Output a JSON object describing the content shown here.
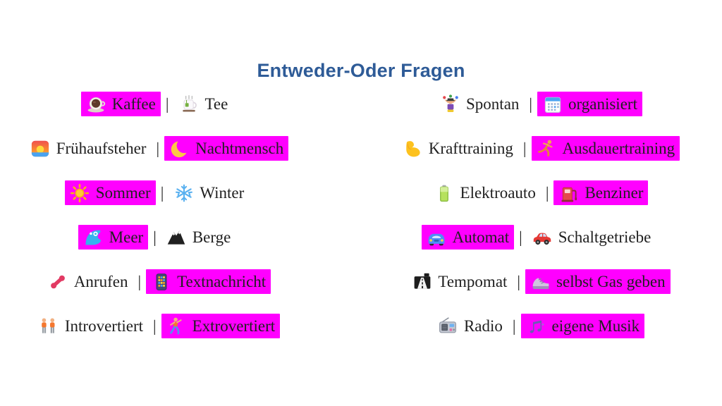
{
  "page": {
    "title": "Entweder-Oder Fragen",
    "title_color": "#2e5b97",
    "highlight_color": "#ff00ff",
    "text_color": "#1f1f1f"
  },
  "separator": "|",
  "columns": [
    {
      "rows": [
        {
          "options": [
            {
              "icon": "coffee-icon",
              "label": "Kaffee",
              "highlighted": true
            },
            {
              "icon": "tea-icon",
              "label": "Tee",
              "highlighted": false
            }
          ]
        },
        {
          "options": [
            {
              "icon": "sunrise-icon",
              "label": "Frühaufsteher",
              "highlighted": false
            },
            {
              "icon": "crescent-moon-icon",
              "label": "Nachtmensch",
              "highlighted": true
            }
          ]
        },
        {
          "options": [
            {
              "icon": "sun-icon",
              "label": "Sommer",
              "highlighted": true
            },
            {
              "icon": "snowflake-icon",
              "label": "Winter",
              "highlighted": false
            }
          ]
        },
        {
          "options": [
            {
              "icon": "wave-icon",
              "label": "Meer",
              "highlighted": true
            },
            {
              "icon": "mountain-icon",
              "label": "Berge",
              "highlighted": false
            }
          ]
        },
        {
          "options": [
            {
              "icon": "phone-receiver-icon",
              "label": "Anrufen",
              "highlighted": false
            },
            {
              "icon": "keypad-icon",
              "label": "Textnachricht",
              "highlighted": true
            }
          ]
        },
        {
          "options": [
            {
              "icon": "two-people-icon",
              "label": "Introvertiert",
              "highlighted": false
            },
            {
              "icon": "dancer-icon",
              "label": "Extrovertiert",
              "highlighted": true
            }
          ]
        }
      ]
    },
    {
      "rows": [
        {
          "options": [
            {
              "icon": "juggler-icon",
              "label": "Spontan",
              "highlighted": false
            },
            {
              "icon": "calendar-icon",
              "label": "organisiert",
              "highlighted": true
            }
          ]
        },
        {
          "options": [
            {
              "icon": "biceps-icon",
              "label": "Krafttraining",
              "highlighted": false
            },
            {
              "icon": "runner-icon",
              "label": "Ausdauertraining",
              "highlighted": true
            }
          ]
        },
        {
          "options": [
            {
              "icon": "battery-icon",
              "label": "Elektroauto",
              "highlighted": false
            },
            {
              "icon": "fuel-pump-icon",
              "label": "Benziner",
              "highlighted": true
            }
          ]
        },
        {
          "options": [
            {
              "icon": "car-front-icon",
              "label": "Automat",
              "highlighted": true
            },
            {
              "icon": "car-side-icon",
              "label": "Schaltgetriebe",
              "highlighted": false
            }
          ]
        },
        {
          "options": [
            {
              "icon": "motorway-icon",
              "label": "Tempomat",
              "highlighted": false
            },
            {
              "icon": "running-shoe-icon",
              "label": "selbst Gas geben",
              "highlighted": true
            }
          ]
        },
        {
          "options": [
            {
              "icon": "radio-icon",
              "label": "Radio",
              "highlighted": false
            },
            {
              "icon": "music-notes-icon",
              "label": "eigene Musik",
              "highlighted": true
            }
          ]
        }
      ]
    }
  ]
}
